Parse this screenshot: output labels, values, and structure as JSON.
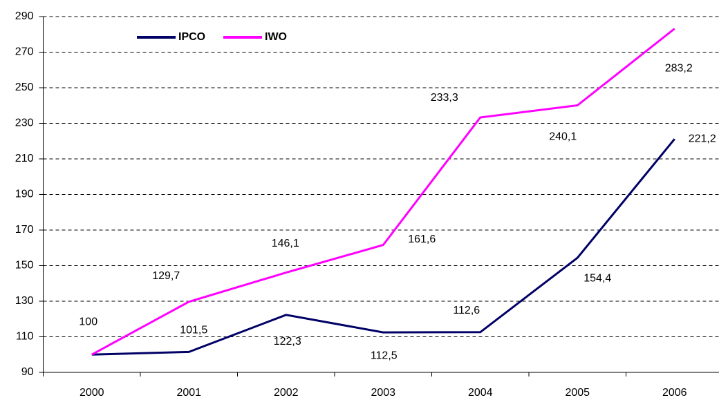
{
  "chart_data": {
    "type": "line",
    "categories": [
      "2000",
      "2001",
      "2002",
      "2003",
      "2004",
      "2005",
      "2006"
    ],
    "series": [
      {
        "name": "IPCO",
        "color": "#000066",
        "values": [
          100,
          101.5,
          122.3,
          112.5,
          112.6,
          154.4,
          221.2
        ],
        "value_labels": [
          null,
          "101,5",
          "122,3",
          "112,5",
          "112,6",
          "154,4",
          "221,2"
        ]
      },
      {
        "name": "IWO",
        "color": "#ff00ff",
        "values": [
          100,
          129.7,
          146.1,
          161.6,
          233.3,
          240.1,
          283.2
        ],
        "value_labels": [
          "100",
          "129,7",
          "146,1",
          "161,6",
          "233,3",
          "240,1",
          "283,2"
        ]
      }
    ],
    "ylim": [
      90,
      290
    ],
    "yticks": [
      90,
      110,
      130,
      150,
      170,
      190,
      210,
      230,
      250,
      270,
      290
    ],
    "grid": true,
    "legend": "top"
  }
}
